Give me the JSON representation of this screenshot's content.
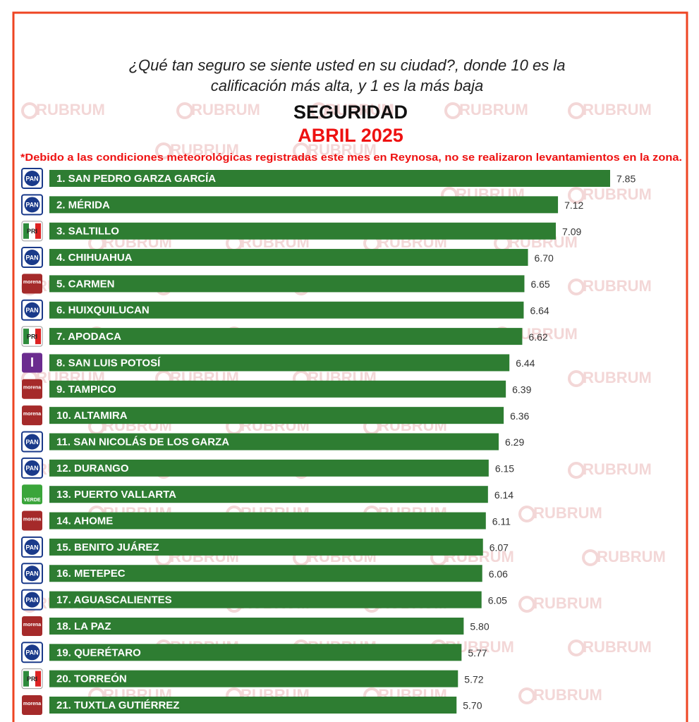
{
  "chart_data": {
    "type": "bar",
    "orientation": "horizontal",
    "question": [
      "¿Qué tan seguro se siente usted en su ciudad?, donde 10 es la",
      "calificación más alta, y  1 es la más baja"
    ],
    "title": "SEGURIDAD",
    "subtitle": "ABRIL 2025",
    "note": "*Debido a las condiciones meteorológicas registradas este mes en Reynosa, no se realizaron levantamientos en la zona.",
    "watermark": "RUBRUM",
    "color": "#2e7d32",
    "categories": [
      "1. SAN PEDRO GARZA GARCÍA",
      "2. MÉRIDA",
      "3. SALTILLO",
      "4. CHIHUAHUA",
      "5. CARMEN",
      "6. HUIXQUILUCAN",
      "7. APODACA",
      "8. SAN LUIS POTOSÍ",
      "9. TAMPICO",
      "10. ALTAMIRA",
      "11. SAN NICOLÁS DE LOS GARZA",
      "12. DURANGO",
      "13. PUERTO VALLARTA",
      "14. AHOME",
      "15. BENITO JUÁREZ",
      "16. METEPEC",
      "17. AGUASCALIENTES",
      "18. LA PAZ",
      "19. QUERÉTARO",
      "20. TORREÓN",
      "21. TUXTLA GUTIÉRREZ"
    ],
    "parties": [
      "PAN",
      "PAN",
      "PRI",
      "PAN",
      "morena",
      "PAN",
      "PRI",
      "I",
      "morena",
      "morena",
      "PAN",
      "PAN",
      "VERDE",
      "morena",
      "PAN",
      "PAN",
      "PAN",
      "morena",
      "PAN",
      "PRI",
      "morena"
    ],
    "values": [
      7.85,
      7.12,
      7.09,
      6.7,
      6.65,
      6.64,
      6.62,
      6.44,
      6.39,
      6.36,
      6.29,
      6.15,
      6.14,
      6.11,
      6.07,
      6.06,
      6.05,
      5.8,
      5.77,
      5.72,
      5.7
    ],
    "value_labels": [
      "7.85",
      "7.12",
      "7.09",
      "6.70",
      "6.65",
      "6.64",
      "6.62",
      "6.44",
      "6.39",
      "6.36",
      "6.29",
      "6.15",
      "6.14",
      "6.11",
      "6.07",
      "6.06",
      "6.05",
      "5.80",
      "5.77",
      "5.72",
      "5.70"
    ]
  }
}
